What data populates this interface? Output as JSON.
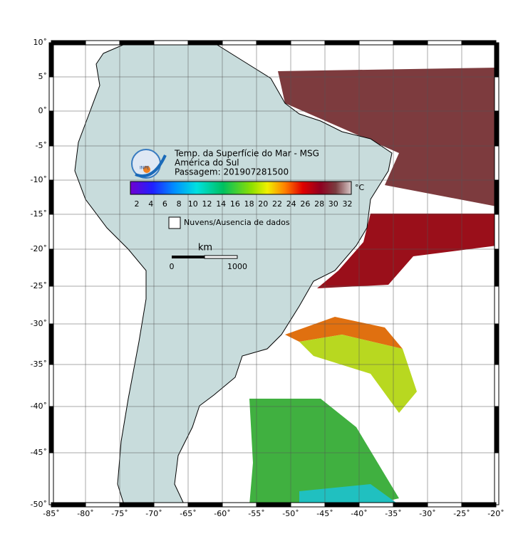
{
  "title": {
    "line1": "Temp. da Superfície do Mar - MSG",
    "line2": "América do Sul",
    "line3": "Passagem: 201907281500"
  },
  "logo": "INPE",
  "colorbar": {
    "unit": "°C",
    "labels": [
      "2",
      "4",
      "6",
      "8",
      "10",
      "12",
      "14",
      "16",
      "18",
      "20",
      "22",
      "24",
      "26",
      "28",
      "30",
      "32"
    ]
  },
  "legend": {
    "label": "Nuvens/Ausencia de dados"
  },
  "scale": {
    "unit": "km",
    "labels": [
      "0",
      "1000"
    ]
  },
  "axes": {
    "lat_labels": [
      "10˚",
      "5˚",
      "0˚",
      "-5˚",
      "-10˚",
      "-15˚",
      "-20˚",
      "-25˚",
      "-30˚",
      "-35˚",
      "-40˚",
      "-45˚",
      "-50˚"
    ],
    "lon_labels": [
      "-85˚",
      "-80˚",
      "-75˚",
      "-70˚",
      "-65˚",
      "-60˚",
      "-55˚",
      "-50˚",
      "-45˚",
      "-40˚",
      "-35˚",
      "-30˚",
      "-25˚",
      "-20˚"
    ]
  }
}
